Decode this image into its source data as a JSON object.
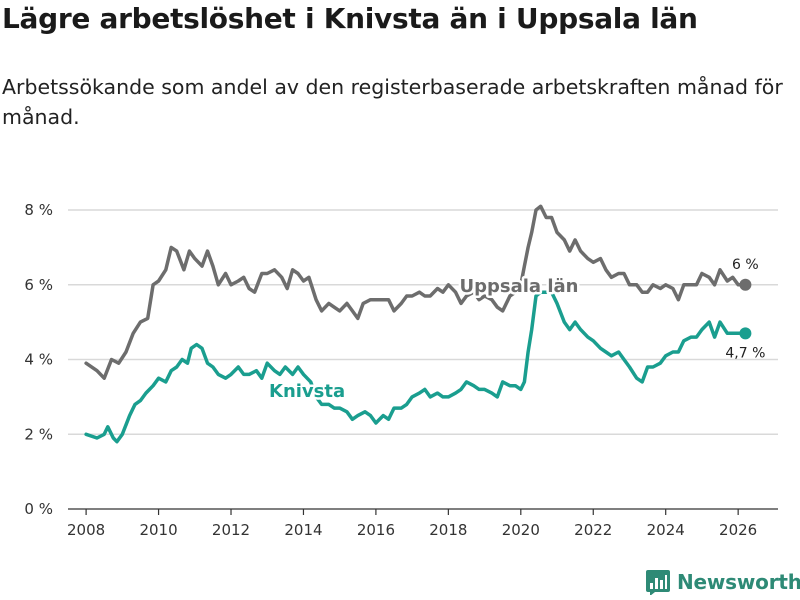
{
  "title": "Lägre arbetslöshet i Knivsta än i Uppsala län",
  "subtitle": "Arbetssökande som andel av den registerbaserade arbetskraften månad för månad.",
  "brand": {
    "name": "Newsworthy",
    "color": "#2e8a76"
  },
  "chart_data": {
    "type": "line",
    "title": "Lägre arbetslöshet i Knivsta än i Uppsala län",
    "xlabel": "",
    "ylabel": "",
    "xlim": [
      2007.5,
      2027.1
    ],
    "ylim": [
      0,
      8
    ],
    "x_ticks": [
      2008,
      2010,
      2012,
      2014,
      2016,
      2018,
      2020,
      2022,
      2024,
      2026
    ],
    "x_tick_labels": [
      "2008",
      "2010",
      "2012",
      "2014",
      "2016",
      "2018",
      "2020",
      "2022",
      "2024",
      "2026"
    ],
    "y_ticks": [
      0,
      2,
      4,
      6,
      8
    ],
    "y_tick_labels": [
      "0 %",
      "2 %",
      "4 %",
      "6 %",
      "8 %"
    ],
    "grid": true,
    "series": [
      {
        "name": "Uppsala län",
        "color": "#6d6d6d",
        "end_label": "6 %",
        "points": [
          [
            2008.0,
            3.9
          ],
          [
            2008.3,
            3.7
          ],
          [
            2008.5,
            3.5
          ],
          [
            2008.7,
            4.0
          ],
          [
            2008.9,
            3.9
          ],
          [
            2009.1,
            4.2
          ],
          [
            2009.3,
            4.7
          ],
          [
            2009.5,
            5.0
          ],
          [
            2009.7,
            5.1
          ],
          [
            2009.85,
            6.0
          ],
          [
            2010.0,
            6.1
          ],
          [
            2010.2,
            6.4
          ],
          [
            2010.35,
            7.0
          ],
          [
            2010.5,
            6.9
          ],
          [
            2010.7,
            6.4
          ],
          [
            2010.85,
            6.9
          ],
          [
            2011.0,
            6.7
          ],
          [
            2011.2,
            6.5
          ],
          [
            2011.35,
            6.9
          ],
          [
            2011.5,
            6.5
          ],
          [
            2011.65,
            6.0
          ],
          [
            2011.85,
            6.3
          ],
          [
            2012.0,
            6.0
          ],
          [
            2012.2,
            6.1
          ],
          [
            2012.35,
            6.2
          ],
          [
            2012.5,
            5.9
          ],
          [
            2012.65,
            5.8
          ],
          [
            2012.85,
            6.3
          ],
          [
            2013.0,
            6.3
          ],
          [
            2013.2,
            6.4
          ],
          [
            2013.4,
            6.2
          ],
          [
            2013.55,
            5.9
          ],
          [
            2013.7,
            6.4
          ],
          [
            2013.85,
            6.3
          ],
          [
            2014.0,
            6.1
          ],
          [
            2014.15,
            6.2
          ],
          [
            2014.35,
            5.6
          ],
          [
            2014.5,
            5.3
          ],
          [
            2014.7,
            5.5
          ],
          [
            2014.85,
            5.4
          ],
          [
            2015.0,
            5.3
          ],
          [
            2015.2,
            5.5
          ],
          [
            2015.35,
            5.3
          ],
          [
            2015.5,
            5.1
          ],
          [
            2015.65,
            5.5
          ],
          [
            2015.85,
            5.6
          ],
          [
            2016.0,
            5.6
          ],
          [
            2016.2,
            5.6
          ],
          [
            2016.35,
            5.6
          ],
          [
            2016.5,
            5.3
          ],
          [
            2016.7,
            5.5
          ],
          [
            2016.85,
            5.7
          ],
          [
            2017.0,
            5.7
          ],
          [
            2017.2,
            5.8
          ],
          [
            2017.35,
            5.7
          ],
          [
            2017.5,
            5.7
          ],
          [
            2017.7,
            5.9
          ],
          [
            2017.85,
            5.8
          ],
          [
            2018.0,
            6.0
          ],
          [
            2018.2,
            5.8
          ],
          [
            2018.35,
            5.5
          ],
          [
            2018.5,
            5.7
          ],
          [
            2018.7,
            5.8
          ],
          [
            2018.85,
            5.6
          ],
          [
            2019.0,
            5.7
          ],
          [
            2019.2,
            5.6
          ],
          [
            2019.35,
            5.4
          ],
          [
            2019.5,
            5.3
          ],
          [
            2019.7,
            5.7
          ],
          [
            2019.85,
            5.8
          ],
          [
            2020.0,
            6.0
          ],
          [
            2020.1,
            6.5
          ],
          [
            2020.2,
            7.0
          ],
          [
            2020.3,
            7.4
          ],
          [
            2020.42,
            8.0
          ],
          [
            2020.55,
            8.1
          ],
          [
            2020.7,
            7.8
          ],
          [
            2020.85,
            7.8
          ],
          [
            2021.0,
            7.4
          ],
          [
            2021.2,
            7.2
          ],
          [
            2021.35,
            6.9
          ],
          [
            2021.5,
            7.2
          ],
          [
            2021.65,
            6.9
          ],
          [
            2021.85,
            6.7
          ],
          [
            2022.0,
            6.6
          ],
          [
            2022.2,
            6.7
          ],
          [
            2022.35,
            6.4
          ],
          [
            2022.5,
            6.2
          ],
          [
            2022.7,
            6.3
          ],
          [
            2022.85,
            6.3
          ],
          [
            2023.0,
            6.0
          ],
          [
            2023.2,
            6.0
          ],
          [
            2023.35,
            5.8
          ],
          [
            2023.5,
            5.8
          ],
          [
            2023.65,
            6.0
          ],
          [
            2023.85,
            5.9
          ],
          [
            2024.0,
            6.0
          ],
          [
            2024.2,
            5.9
          ],
          [
            2024.35,
            5.6
          ],
          [
            2024.5,
            6.0
          ],
          [
            2024.7,
            6.0
          ],
          [
            2024.85,
            6.0
          ],
          [
            2025.0,
            6.3
          ],
          [
            2025.2,
            6.2
          ],
          [
            2025.35,
            6.0
          ],
          [
            2025.5,
            6.4
          ],
          [
            2025.7,
            6.1
          ],
          [
            2025.85,
            6.2
          ],
          [
            2026.0,
            6.0
          ],
          [
            2026.2,
            6.0
          ]
        ]
      },
      {
        "name": "Knivsta",
        "color": "#1a9e8f",
        "end_label": "4,7 %",
        "points": [
          [
            2008.0,
            2.0
          ],
          [
            2008.3,
            1.9
          ],
          [
            2008.5,
            2.0
          ],
          [
            2008.6,
            2.2
          ],
          [
            2008.75,
            1.9
          ],
          [
            2008.85,
            1.8
          ],
          [
            2009.0,
            2.0
          ],
          [
            2009.2,
            2.5
          ],
          [
            2009.35,
            2.8
          ],
          [
            2009.5,
            2.9
          ],
          [
            2009.65,
            3.1
          ],
          [
            2009.85,
            3.3
          ],
          [
            2010.0,
            3.5
          ],
          [
            2010.2,
            3.4
          ],
          [
            2010.35,
            3.7
          ],
          [
            2010.5,
            3.8
          ],
          [
            2010.65,
            4.0
          ],
          [
            2010.8,
            3.9
          ],
          [
            2010.9,
            4.3
          ],
          [
            2011.05,
            4.4
          ],
          [
            2011.2,
            4.3
          ],
          [
            2011.35,
            3.9
          ],
          [
            2011.5,
            3.8
          ],
          [
            2011.65,
            3.6
          ],
          [
            2011.85,
            3.5
          ],
          [
            2012.0,
            3.6
          ],
          [
            2012.2,
            3.8
          ],
          [
            2012.35,
            3.6
          ],
          [
            2012.5,
            3.6
          ],
          [
            2012.7,
            3.7
          ],
          [
            2012.85,
            3.5
          ],
          [
            2013.0,
            3.9
          ],
          [
            2013.2,
            3.7
          ],
          [
            2013.35,
            3.6
          ],
          [
            2013.5,
            3.8
          ],
          [
            2013.7,
            3.6
          ],
          [
            2013.85,
            3.8
          ],
          [
            2014.0,
            3.6
          ],
          [
            2014.2,
            3.4
          ],
          [
            2014.35,
            3.0
          ],
          [
            2014.5,
            2.8
          ],
          [
            2014.7,
            2.8
          ],
          [
            2014.85,
            2.7
          ],
          [
            2015.0,
            2.7
          ],
          [
            2015.2,
            2.6
          ],
          [
            2015.35,
            2.4
          ],
          [
            2015.5,
            2.5
          ],
          [
            2015.7,
            2.6
          ],
          [
            2015.85,
            2.5
          ],
          [
            2016.0,
            2.3
          ],
          [
            2016.2,
            2.5
          ],
          [
            2016.35,
            2.4
          ],
          [
            2016.5,
            2.7
          ],
          [
            2016.7,
            2.7
          ],
          [
            2016.85,
            2.8
          ],
          [
            2017.0,
            3.0
          ],
          [
            2017.2,
            3.1
          ],
          [
            2017.35,
            3.2
          ],
          [
            2017.5,
            3.0
          ],
          [
            2017.7,
            3.1
          ],
          [
            2017.85,
            3.0
          ],
          [
            2018.0,
            3.0
          ],
          [
            2018.2,
            3.1
          ],
          [
            2018.35,
            3.2
          ],
          [
            2018.5,
            3.4
          ],
          [
            2018.7,
            3.3
          ],
          [
            2018.85,
            3.2
          ],
          [
            2019.0,
            3.2
          ],
          [
            2019.2,
            3.1
          ],
          [
            2019.35,
            3.0
          ],
          [
            2019.5,
            3.4
          ],
          [
            2019.7,
            3.3
          ],
          [
            2019.85,
            3.3
          ],
          [
            2020.0,
            3.2
          ],
          [
            2020.1,
            3.4
          ],
          [
            2020.2,
            4.2
          ],
          [
            2020.3,
            4.8
          ],
          [
            2020.42,
            5.7
          ],
          [
            2020.55,
            5.8
          ],
          [
            2020.7,
            5.8
          ],
          [
            2020.85,
            5.8
          ],
          [
            2021.0,
            5.5
          ],
          [
            2021.2,
            5.0
          ],
          [
            2021.35,
            4.8
          ],
          [
            2021.5,
            5.0
          ],
          [
            2021.65,
            4.8
          ],
          [
            2021.85,
            4.6
          ],
          [
            2022.0,
            4.5
          ],
          [
            2022.2,
            4.3
          ],
          [
            2022.35,
            4.2
          ],
          [
            2022.5,
            4.1
          ],
          [
            2022.7,
            4.2
          ],
          [
            2022.85,
            4.0
          ],
          [
            2023.0,
            3.8
          ],
          [
            2023.2,
            3.5
          ],
          [
            2023.35,
            3.4
          ],
          [
            2023.5,
            3.8
          ],
          [
            2023.65,
            3.8
          ],
          [
            2023.85,
            3.9
          ],
          [
            2024.0,
            4.1
          ],
          [
            2024.2,
            4.2
          ],
          [
            2024.35,
            4.2
          ],
          [
            2024.5,
            4.5
          ],
          [
            2024.7,
            4.6
          ],
          [
            2024.85,
            4.6
          ],
          [
            2025.0,
            4.8
          ],
          [
            2025.2,
            5.0
          ],
          [
            2025.35,
            4.6
          ],
          [
            2025.5,
            5.0
          ],
          [
            2025.7,
            4.7
          ],
          [
            2025.85,
            4.7
          ],
          [
            2026.0,
            4.7
          ],
          [
            2026.2,
            4.7
          ]
        ]
      }
    ]
  }
}
